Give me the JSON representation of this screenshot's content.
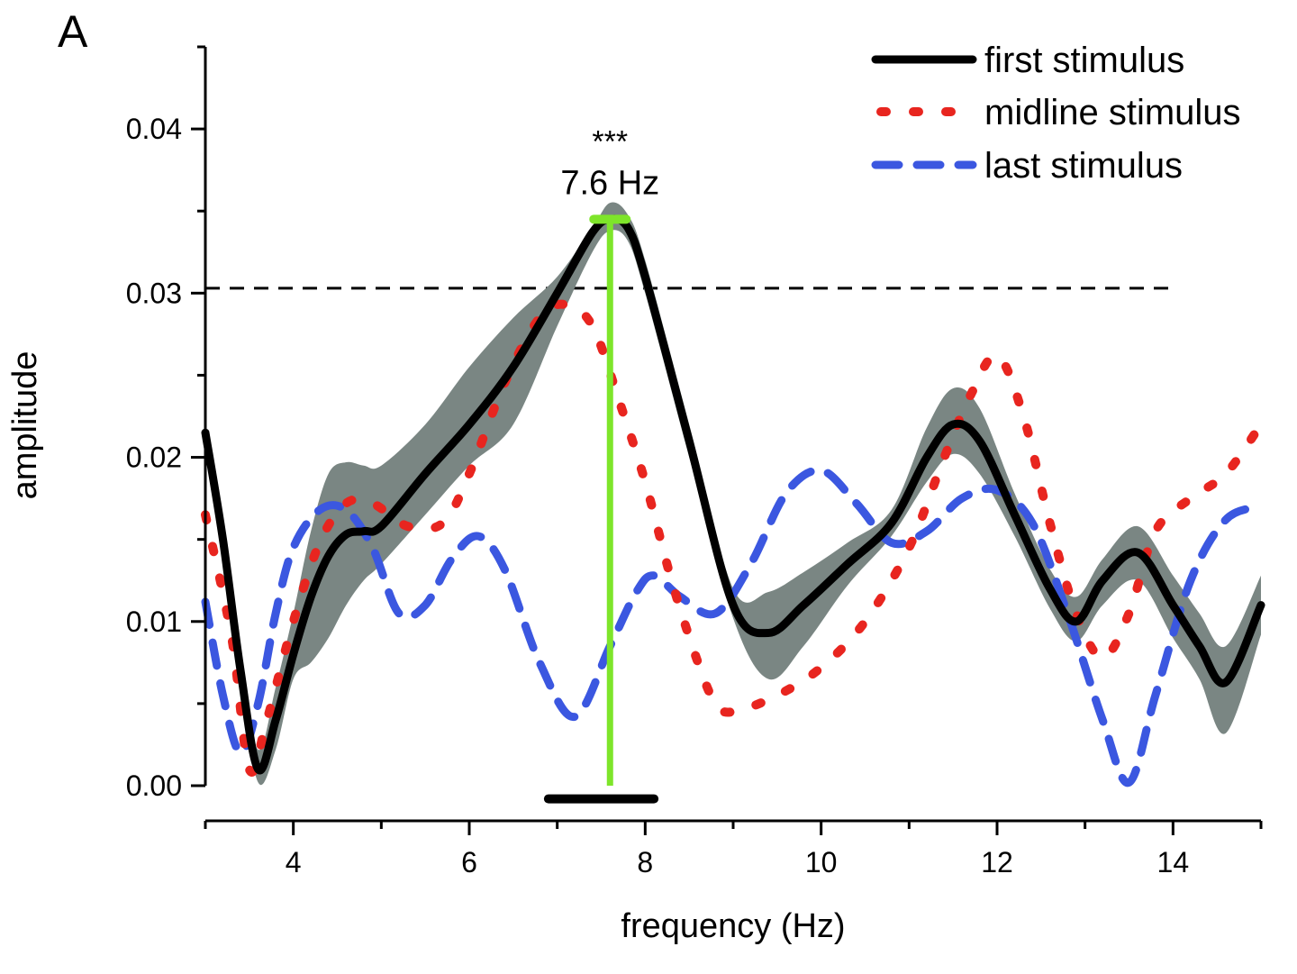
{
  "chart_data": {
    "type": "line",
    "panel_label": "A",
    "xlabel": "frequency (Hz)",
    "ylabel": "amplitude",
    "xlim": [
      3,
      15
    ],
    "ylim": [
      0,
      0.045
    ],
    "x_ticks": [
      4,
      6,
      8,
      10,
      12,
      14
    ],
    "x_tick_labels": [
      "4",
      "6",
      "8",
      "10",
      "12",
      "14"
    ],
    "y_ticks": [
      0,
      0.01,
      0.02,
      0.03,
      0.04
    ],
    "y_tick_labels": [
      "0.00",
      "0.01",
      "0.02",
      "0.03",
      "0.04"
    ],
    "threshold": {
      "y": 0.0303,
      "x_range": [
        3,
        14
      ]
    },
    "annotation": {
      "stars": "***",
      "label": "7.6 Hz",
      "x": 7.6,
      "y": 0.0345
    },
    "significance_bar": {
      "x_range": [
        6.9,
        8.1
      ],
      "y": -0.0008
    },
    "legend": {
      "position": "top-right",
      "entries": [
        "first stimulus",
        "midline stimulus",
        "last stimulus"
      ]
    },
    "series": [
      {
        "name": "first stimulus",
        "color": "#000000",
        "style": "solid",
        "x": [
          3.0,
          3.2,
          3.4,
          3.6,
          3.8,
          4.0,
          4.2,
          4.4,
          4.6,
          4.8,
          5.0,
          5.5,
          6.0,
          6.5,
          7.0,
          7.4,
          7.6,
          7.8,
          8.0,
          8.5,
          9.0,
          9.4,
          9.8,
          10.3,
          10.8,
          11.2,
          11.5,
          11.8,
          12.2,
          12.6,
          12.9,
          13.2,
          13.6,
          14.0,
          14.3,
          14.6,
          15.0
        ],
        "values": [
          0.0215,
          0.015,
          0.007,
          0.001,
          0.004,
          0.008,
          0.0115,
          0.014,
          0.0153,
          0.0155,
          0.0158,
          0.019,
          0.022,
          0.0255,
          0.03,
          0.0337,
          0.0345,
          0.034,
          0.031,
          0.021,
          0.011,
          0.0093,
          0.011,
          0.0135,
          0.016,
          0.02,
          0.022,
          0.021,
          0.0165,
          0.012,
          0.01,
          0.0125,
          0.0142,
          0.011,
          0.0085,
          0.0063,
          0.011
        ]
      },
      {
        "name": "first stimulus SEM band",
        "color": "#7a8683",
        "style": "band",
        "x": [
          3.0,
          3.2,
          3.4,
          3.6,
          3.8,
          4.0,
          4.2,
          4.4,
          4.6,
          4.8,
          5.0,
          5.5,
          6.0,
          6.5,
          7.0,
          7.4,
          7.6,
          7.8,
          8.0,
          8.5,
          9.0,
          9.4,
          9.8,
          10.3,
          10.8,
          11.2,
          11.5,
          11.8,
          12.2,
          12.6,
          12.9,
          13.2,
          13.6,
          14.0,
          14.3,
          14.6,
          15.0
        ],
        "upper": [
          0.022,
          0.0158,
          0.0078,
          0.0022,
          0.006,
          0.0105,
          0.0155,
          0.019,
          0.0197,
          0.0195,
          0.0195,
          0.022,
          0.0255,
          0.0285,
          0.031,
          0.034,
          0.0355,
          0.0348,
          0.032,
          0.022,
          0.012,
          0.0118,
          0.013,
          0.0148,
          0.0168,
          0.0218,
          0.0242,
          0.023,
          0.0178,
          0.0132,
          0.0115,
          0.0138,
          0.0158,
          0.0128,
          0.0105,
          0.0085,
          0.0128
        ],
        "lower": [
          0.021,
          0.0142,
          0.0062,
          0.0002,
          0.0022,
          0.0065,
          0.0075,
          0.009,
          0.011,
          0.0125,
          0.0135,
          0.0165,
          0.0195,
          0.022,
          0.028,
          0.0325,
          0.0338,
          0.0332,
          0.03,
          0.02,
          0.0102,
          0.0065,
          0.0085,
          0.0122,
          0.0152,
          0.0185,
          0.0202,
          0.019,
          0.0152,
          0.0108,
          0.0088,
          0.011,
          0.0125,
          0.009,
          0.0065,
          0.0032,
          0.0092
        ]
      },
      {
        "name": "midline stimulus",
        "color": "#e8251f",
        "style": "dotted",
        "x": [
          3.0,
          3.3,
          3.5,
          3.7,
          4.0,
          4.3,
          4.6,
          4.9,
          5.3,
          5.7,
          6.0,
          6.4,
          6.8,
          7.1,
          7.4,
          7.7,
          8.0,
          8.3,
          8.6,
          8.8,
          9.0,
          9.5,
          10.0,
          10.5,
          11.0,
          11.4,
          11.7,
          12.0,
          12.3,
          12.6,
          12.9,
          13.2,
          13.5,
          13.8,
          14.2,
          14.6,
          15.0
        ],
        "values": [
          0.0165,
          0.009,
          0.001,
          0.004,
          0.01,
          0.0148,
          0.0172,
          0.0172,
          0.0158,
          0.016,
          0.019,
          0.0245,
          0.0285,
          0.0293,
          0.028,
          0.0235,
          0.0185,
          0.0125,
          0.0075,
          0.005,
          0.0045,
          0.0055,
          0.0072,
          0.01,
          0.0145,
          0.02,
          0.0238,
          0.0262,
          0.0225,
          0.016,
          0.0105,
          0.0078,
          0.0105,
          0.0155,
          0.0175,
          0.019,
          0.022
        ]
      },
      {
        "name": "last stimulus",
        "color": "#3b57e0",
        "style": "dashed",
        "x": [
          3.0,
          3.2,
          3.4,
          3.6,
          3.8,
          4.0,
          4.3,
          4.6,
          4.9,
          5.2,
          5.5,
          5.8,
          6.1,
          6.4,
          6.8,
          7.2,
          7.6,
          7.9,
          8.1,
          8.4,
          8.8,
          9.2,
          9.6,
          10.0,
          10.4,
          10.8,
          11.2,
          11.6,
          12.0,
          12.4,
          12.8,
          13.2,
          13.5,
          13.8,
          14.2,
          14.6,
          15.0
        ],
        "values": [
          0.0112,
          0.0055,
          0.002,
          0.005,
          0.0105,
          0.0145,
          0.0168,
          0.0168,
          0.0145,
          0.0105,
          0.011,
          0.0138,
          0.0152,
          0.0132,
          0.0075,
          0.0042,
          0.0085,
          0.0118,
          0.0128,
          0.0115,
          0.0105,
          0.0135,
          0.0178,
          0.0192,
          0.0172,
          0.0148,
          0.0155,
          0.0175,
          0.018,
          0.016,
          0.0105,
          0.004,
          0.0002,
          0.0055,
          0.0125,
          0.0162,
          0.017
        ]
      }
    ]
  }
}
